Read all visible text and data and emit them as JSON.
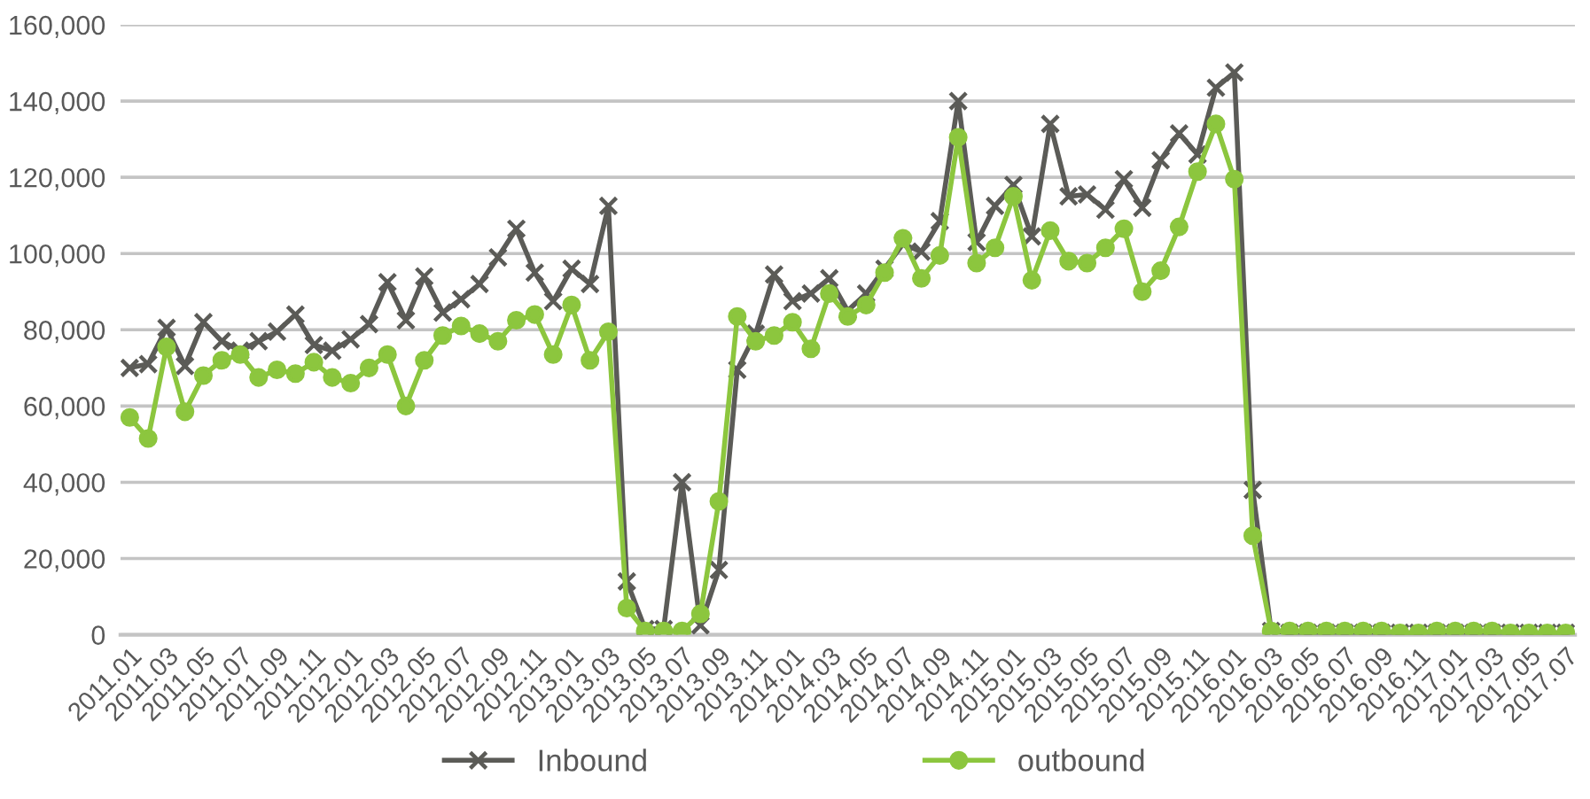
{
  "chart_data": {
    "type": "line",
    "categories": [
      "2011.01",
      null,
      "2011.03",
      null,
      "2011.05",
      null,
      "2011.07",
      null,
      "2011.09",
      null,
      "2011.11",
      null,
      "2012.01",
      null,
      "2012.03",
      null,
      "2012.05",
      null,
      "2012.07",
      null,
      "2012.09",
      null,
      "2012.11",
      null,
      "2013.01",
      null,
      "2013.03",
      null,
      "2013.05",
      null,
      "2013.07",
      null,
      "2013.09",
      null,
      "2013.11",
      null,
      "2014.01",
      null,
      "2014.03",
      null,
      "2014.05",
      null,
      "2014.07",
      null,
      "2014.09",
      null,
      "2014.11",
      null,
      "2015.01",
      null,
      "2015.03",
      null,
      "2015.05",
      null,
      "2015.07",
      null,
      "2015.09",
      null,
      "2015.11",
      null,
      "2016.01",
      null,
      "2016.03",
      null,
      "2016.05",
      null,
      "2016.07",
      null,
      "2016.09",
      null,
      "2016.11",
      null,
      "2017.01",
      null,
      "2017.03",
      null,
      "2017.05",
      null,
      "2017.07"
    ],
    "series": [
      {
        "name": "Inbound",
        "color": "#5b5b57",
        "marker": "cross",
        "values": [
          70000,
          71000,
          80500,
          70500,
          82000,
          77000,
          74500,
          77000,
          79500,
          84000,
          76000,
          74500,
          77500,
          81500,
          92500,
          82500,
          94000,
          84500,
          88000,
          92000,
          99000,
          106500,
          95000,
          87500,
          96000,
          92000,
          112500,
          14000,
          1500,
          1500,
          40000,
          2500,
          17000,
          69500,
          79000,
          94500,
          87500,
          89500,
          93500,
          85000,
          89500,
          96000,
          102500,
          100500,
          108500,
          140000,
          103000,
          112500,
          118000,
          104500,
          134000,
          115000,
          115500,
          111500,
          119500,
          112000,
          124500,
          131500,
          126000,
          143500,
          147500,
          38000,
          1000,
          500,
          500,
          500,
          500,
          500,
          500,
          500,
          500,
          500,
          500,
          500,
          500,
          500,
          500,
          500,
          500
        ]
      },
      {
        "name": "outbound",
        "color": "#8cc63e",
        "marker": "circle",
        "values": [
          57000,
          51500,
          75500,
          58500,
          68000,
          72000,
          73500,
          67500,
          69500,
          68500,
          71500,
          67500,
          66000,
          70000,
          73500,
          60000,
          72000,
          78500,
          81000,
          79000,
          77000,
          82500,
          84000,
          73500,
          86500,
          72000,
          79500,
          7000,
          1000,
          1000,
          1000,
          5500,
          35000,
          83500,
          77000,
          78500,
          82000,
          75000,
          89500,
          83500,
          86500,
          95000,
          104000,
          93500,
          99500,
          130500,
          97500,
          101500,
          115000,
          93000,
          106000,
          98000,
          97500,
          101500,
          106500,
          90000,
          95500,
          107000,
          121500,
          134000,
          119500,
          26000,
          1000,
          1000,
          1000,
          1000,
          1000,
          1000,
          1000,
          500,
          500,
          1000,
          1000,
          1000,
          1000,
          500,
          500,
          500,
          500
        ]
      }
    ],
    "ylim": [
      0,
      160000
    ],
    "yticks": [
      0,
      {
        "value": 20000,
        "label": "20,000"
      },
      {
        "value": 40000,
        "label": "40,000"
      },
      {
        "value": 60000,
        "label": "60,000"
      },
      {
        "value": 80000,
        "label": "80,000"
      },
      {
        "value": 100000,
        "label": "100,000"
      },
      {
        "value": 120000,
        "label": "120,000"
      },
      {
        "value": 140000,
        "label": "140,000"
      },
      {
        "value": 160000,
        "label": "160,000"
      }
    ],
    "grid": "y",
    "legend": "bottom",
    "line_style": "solid"
  }
}
